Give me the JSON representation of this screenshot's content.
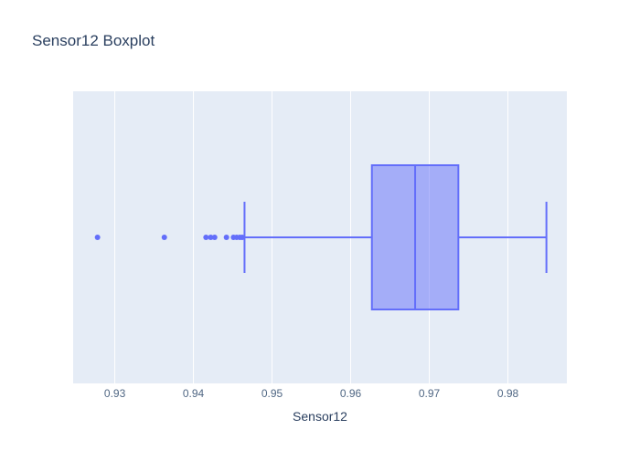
{
  "chart_data": {
    "type": "box",
    "title": "Sensor12 Boxplot",
    "xlabel": "Sensor12",
    "ylabel": "",
    "orientation": "horizontal",
    "xlim": [
      0.9247,
      0.9875
    ],
    "x_ticks": [
      0.93,
      0.94,
      0.95,
      0.96,
      0.97,
      0.98
    ],
    "x_tick_labels": [
      "0.93",
      "0.94",
      "0.95",
      "0.96",
      "0.97",
      "0.98"
    ],
    "grid": true,
    "legend": "none",
    "box": {
      "lower_fence": 0.9465,
      "q1": 0.9627,
      "median": 0.9682,
      "q3": 0.9737,
      "upper_fence": 0.9849
    },
    "outliers": [
      0.9278,
      0.9363,
      0.9416,
      0.9422,
      0.9427,
      0.9442,
      0.9451,
      0.9455,
      0.9459,
      0.9462
    ]
  },
  "colors": {
    "plot_background": "#e5ecf6",
    "grid": "#ffffff",
    "series": "#636efa",
    "text": "#2a3f5f",
    "tick_text": "#506784"
  }
}
